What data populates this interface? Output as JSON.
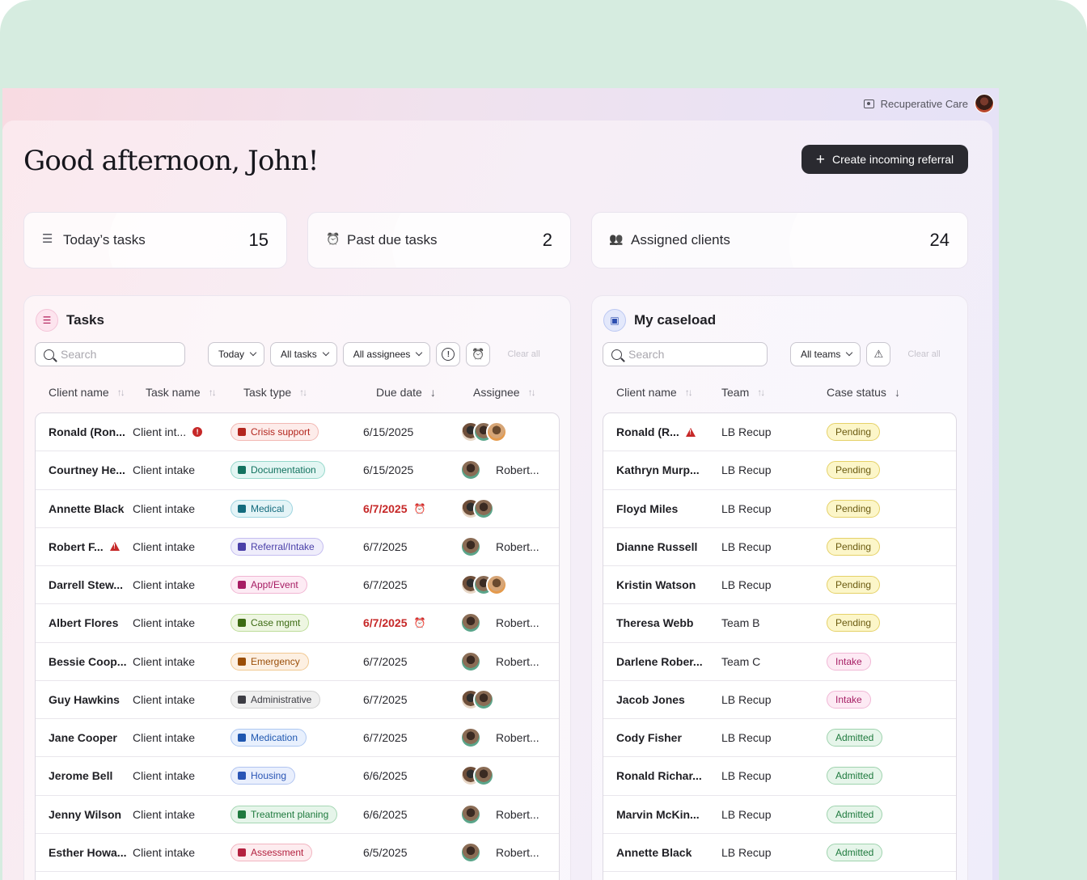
{
  "header": {
    "org_name": "Recuperative Care",
    "greeting": "Good afternoon, John!",
    "create_button": "Create incoming referral"
  },
  "stats": [
    {
      "label": "Today’s tasks",
      "value": "15",
      "icon": "checklist-icon"
    },
    {
      "label": "Past due tasks",
      "value": "2",
      "icon": "alarm-clock-icon"
    },
    {
      "label": "Assigned clients",
      "value": "24",
      "icon": "users-icon"
    }
  ],
  "tasks": {
    "title": "Tasks",
    "search_placeholder": "Search",
    "filters": [
      "Today",
      "All tasks",
      "All assignees"
    ],
    "clear_all": "Clear all",
    "columns": [
      "Client name",
      "Task name",
      "Task type",
      "Due date",
      "Assignee"
    ],
    "rows": [
      {
        "client": "Ronald (Ron...",
        "task": "Client int...",
        "type": "Crisis support",
        "due": "6/15/2025",
        "assignee": "",
        "avatars": 3,
        "flag": "task-alert"
      },
      {
        "client": "Courtney He...",
        "task": "Client intake",
        "type": "Documentation",
        "due": "6/15/2025",
        "assignee": "Robert...",
        "avatars": 1
      },
      {
        "client": "Annette Black",
        "task": "Client intake",
        "type": "Medical",
        "due": "6/7/2025",
        "assignee": "",
        "avatars": 2,
        "overdue": true
      },
      {
        "client": "Robert F...",
        "task": "Client intake",
        "type": "Referral/Intake",
        "due": "6/7/2025",
        "assignee": "Robert...",
        "avatars": 1,
        "flag": "client-warning"
      },
      {
        "client": "Darrell Stew...",
        "task": "Client intake",
        "type": "Appt/Event",
        "due": "6/7/2025",
        "assignee": "",
        "avatars": 3
      },
      {
        "client": "Albert Flores",
        "task": "Client intake",
        "type": "Case mgmt",
        "due": "6/7/2025",
        "assignee": "Robert...",
        "avatars": 1,
        "overdue": true
      },
      {
        "client": "Bessie Coop...",
        "task": "Client intake",
        "type": "Emergency",
        "due": "6/7/2025",
        "assignee": "Robert...",
        "avatars": 1
      },
      {
        "client": "Guy Hawkins",
        "task": "Client intake",
        "type": "Administrative",
        "due": "6/7/2025",
        "assignee": "",
        "avatars": 2
      },
      {
        "client": "Jane Cooper",
        "task": "Client intake",
        "type": "Medication",
        "due": "6/7/2025",
        "assignee": "Robert...",
        "avatars": 1
      },
      {
        "client": "Jerome Bell",
        "task": "Client intake",
        "type": "Housing",
        "due": "6/6/2025",
        "assignee": "",
        "avatars": 2
      },
      {
        "client": "Jenny Wilson",
        "task": "Client intake",
        "type": "Treatment planing",
        "due": "6/6/2025",
        "assignee": "Robert...",
        "avatars": 1
      },
      {
        "client": "Esther Howa...",
        "task": "Client intake",
        "type": "Assessment",
        "due": "6/5/2025",
        "assignee": "Robert...",
        "avatars": 1
      }
    ]
  },
  "tag_colors": {
    "Crisis support": {
      "bg": "#fdecea",
      "border": "#f2b8b3",
      "fg": "#b3261e"
    },
    "Documentation": {
      "bg": "#e3f6f3",
      "border": "#96d8cb",
      "fg": "#12725f"
    },
    "Medical": {
      "bg": "#e4f4f7",
      "border": "#9fd5e0",
      "fg": "#136b7d"
    },
    "Referral/Intake": {
      "bg": "#efedfb",
      "border": "#c4bdf0",
      "fg": "#4a3fa8"
    },
    "Appt/Event": {
      "bg": "#fdebf4",
      "border": "#f1b6d3",
      "fg": "#a71c63"
    },
    "Case mgmt": {
      "bg": "#eef6e2",
      "border": "#bcdc98",
      "fg": "#3d6b14"
    },
    "Emergency": {
      "bg": "#fdf0e2",
      "border": "#f1c891",
      "fg": "#9a4e08"
    },
    "Administrative": {
      "bg": "#efefef",
      "border": "#d2d2d2",
      "fg": "#3d3d44"
    },
    "Medication": {
      "bg": "#e8f0fd",
      "border": "#aec8f2",
      "fg": "#1f57b0"
    },
    "Housing": {
      "bg": "#e9effd",
      "border": "#b1c4f0",
      "fg": "#2a55b5"
    },
    "Treatment planing": {
      "bg": "#e6f5ea",
      "border": "#a6d7b4",
      "fg": "#1f7a3e"
    },
    "Assessment": {
      "bg": "#fdecef",
      "border": "#f2b5c1",
      "fg": "#b3213f"
    }
  },
  "caseload": {
    "title": "My caseload",
    "search_placeholder": "Search",
    "filters": [
      "All teams"
    ],
    "clear_all": "Clear all",
    "columns": [
      "Client name",
      "Team",
      "Case status"
    ],
    "rows": [
      {
        "client": "Ronald (R...",
        "team": "LB Recup",
        "status": "Pending",
        "flag": true
      },
      {
        "client": "Kathryn Murp...",
        "team": "LB Recup",
        "status": "Pending"
      },
      {
        "client": "Floyd Miles",
        "team": "LB Recup",
        "status": "Pending"
      },
      {
        "client": "Dianne Russell",
        "team": "LB Recup",
        "status": "Pending"
      },
      {
        "client": "Kristin Watson",
        "team": "LB Recup",
        "status": "Pending"
      },
      {
        "client": "Theresa Webb",
        "team": "Team B",
        "status": "Pending"
      },
      {
        "client": "Darlene Rober...",
        "team": "Team C",
        "status": "Intake"
      },
      {
        "client": "Jacob Jones",
        "team": "LB Recup",
        "status": "Intake"
      },
      {
        "client": "Cody Fisher",
        "team": "LB Recup",
        "status": "Admitted"
      },
      {
        "client": "Ronald Richar...",
        "team": "LB Recup",
        "status": "Admitted"
      },
      {
        "client": "Marvin McKin...",
        "team": "LB Recup",
        "status": "Admitted"
      },
      {
        "client": "Annette Black",
        "team": "LB Recup",
        "status": "Admitted"
      }
    ]
  }
}
